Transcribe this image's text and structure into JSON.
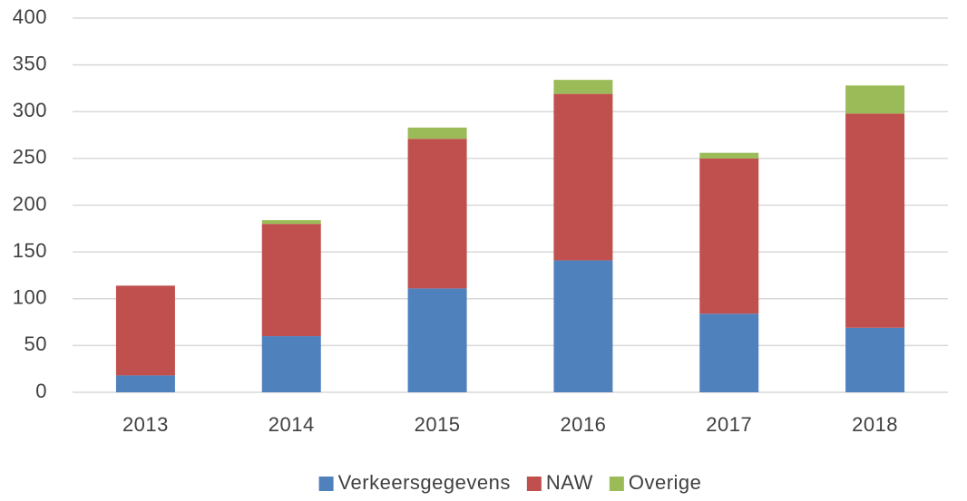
{
  "chart_data": {
    "type": "stacked_bar",
    "categories": [
      "2013",
      "2014",
      "2015",
      "2016",
      "2017",
      "2018"
    ],
    "series": [
      {
        "name": "Verkeersgegevens",
        "color": "#4f81bd",
        "values": [
          18,
          60,
          111,
          141,
          84,
          69
        ]
      },
      {
        "name": "NAW",
        "color": "#c0504d",
        "values": [
          96,
          120,
          160,
          178,
          166,
          229
        ]
      },
      {
        "name": "Overige",
        "color": "#9bbb59",
        "values": [
          0,
          4,
          12,
          15,
          6,
          30
        ]
      }
    ],
    "ylim": [
      0,
      400
    ],
    "yticks": [
      0,
      50,
      100,
      150,
      200,
      250,
      300,
      350,
      400
    ],
    "grid": true,
    "legend": "bottom"
  }
}
